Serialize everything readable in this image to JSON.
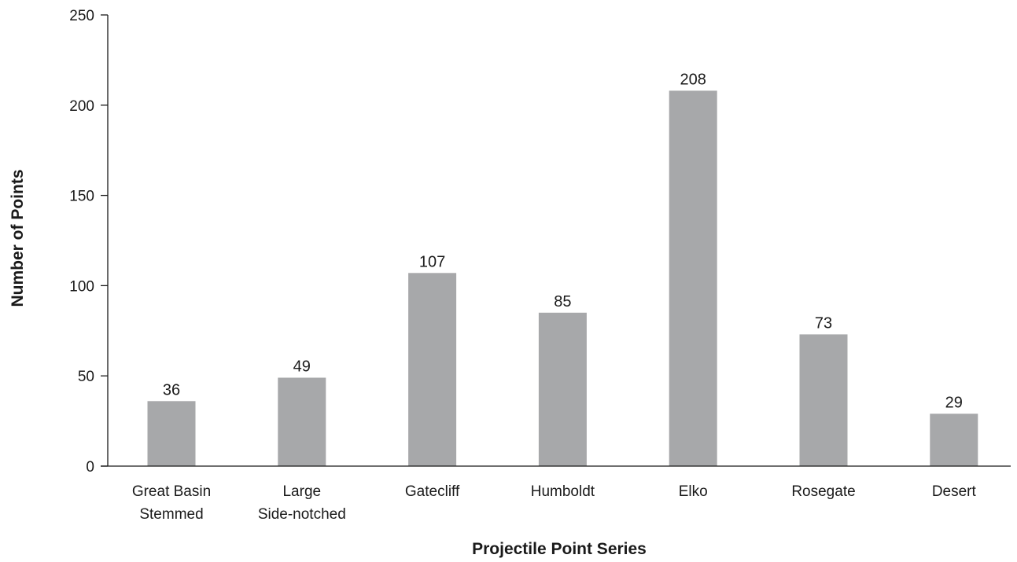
{
  "chart_data": {
    "type": "bar",
    "categories": [
      "Great Basin Stemmed",
      "Large Side-notched",
      "Gatecliff",
      "Humboldt",
      "Elko",
      "Rosegate",
      "Desert"
    ],
    "category_lines": [
      [
        "Great Basin",
        "Stemmed"
      ],
      [
        "Large",
        "Side-notched"
      ],
      [
        "Gatecliff"
      ],
      [
        "Humboldt"
      ],
      [
        "Elko"
      ],
      [
        "Rosegate"
      ],
      [
        "Desert"
      ]
    ],
    "values": [
      36,
      49,
      107,
      85,
      208,
      73,
      29
    ],
    "data_labels": [
      "36",
      "49",
      "107",
      "85",
      "208",
      "73",
      "29"
    ],
    "xlabel": "Projectile Point Series",
    "ylabel": "Number of Points",
    "ylim": [
      0,
      250
    ],
    "yticks": [
      0,
      50,
      100,
      150,
      200,
      250
    ],
    "grid": false,
    "legend": "none",
    "bar_color": "#a7a8aa",
    "axis_color": "#1a1a1a"
  }
}
